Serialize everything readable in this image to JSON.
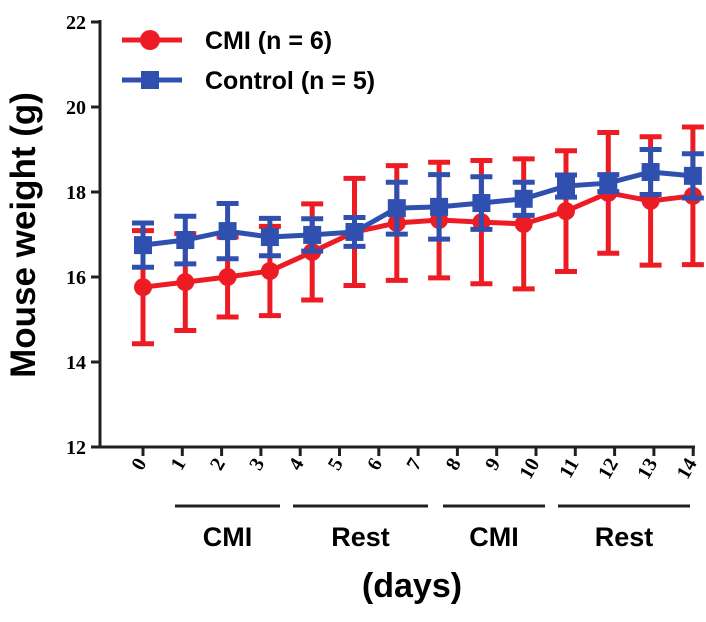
{
  "chart_data": {
    "type": "line",
    "ylabel": "Mouse weight (g)",
    "xlabel": "(days)",
    "ylim": [
      12,
      22
    ],
    "yticks": [
      "22",
      "20",
      "18",
      "16",
      "14",
      "12"
    ],
    "xtick_labels": [
      "0",
      "1",
      "2",
      "3",
      "4",
      "5",
      "6",
      "7",
      "8",
      "9",
      "10",
      "11",
      "12",
      "13",
      "14"
    ],
    "phases": [
      {
        "label": "CMI",
        "from": 1,
        "to": 3
      },
      {
        "label": "Rest",
        "from": 4,
        "to": 7
      },
      {
        "label": "CMI",
        "from": 8,
        "to": 10
      },
      {
        "label": "Rest",
        "from": 11,
        "to": 14
      }
    ],
    "grid": false,
    "legend": "top-left",
    "error_bars": true,
    "series": [
      {
        "name": "CMI (n = 6)",
        "color": "#ed1c24",
        "marker": "circle",
        "values": [
          15.76,
          15.88,
          16.0,
          16.14,
          16.59,
          17.06,
          17.27,
          17.34,
          17.29,
          17.25,
          17.55,
          17.98,
          17.79,
          17.91
        ],
        "errors": [
          1.33,
          1.14,
          0.94,
          1.05,
          1.13,
          1.26,
          1.35,
          1.36,
          1.45,
          1.53,
          1.42,
          1.42,
          1.51,
          1.62
        ]
      },
      {
        "name": "Control (n = 5)",
        "color": "#3050b0",
        "marker": "square",
        "values": [
          16.75,
          16.87,
          17.08,
          16.94,
          16.99,
          17.06,
          17.62,
          17.65,
          17.74,
          17.84,
          18.14,
          18.21,
          18.47,
          18.38
        ],
        "errors": [
          0.52,
          0.56,
          0.65,
          0.44,
          0.38,
          0.34,
          0.61,
          0.76,
          0.62,
          0.39,
          0.26,
          0.2,
          0.53,
          0.52
        ]
      }
    ]
  }
}
